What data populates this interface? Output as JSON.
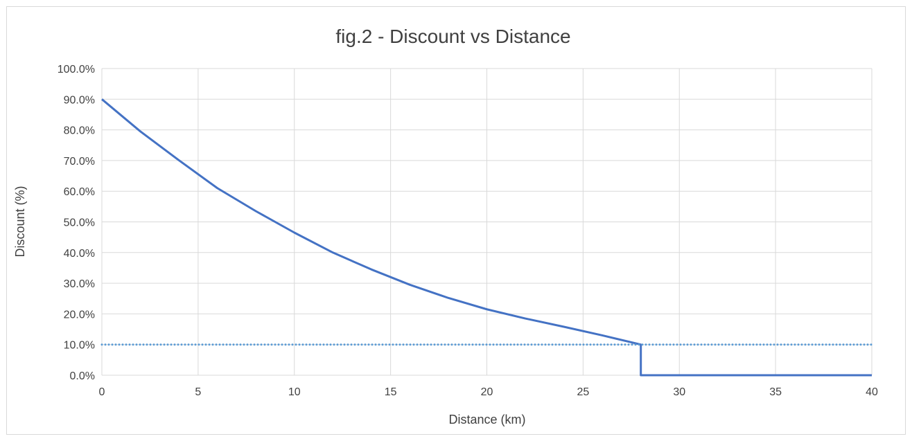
{
  "chart_data": {
    "type": "line",
    "title": "fig.2 - Discount vs Distance",
    "xlabel": "Distance (km)",
    "ylabel": "Discount (%)",
    "xlim": [
      0,
      40
    ],
    "ylim": [
      0,
      100
    ],
    "x_ticks": [
      0,
      5,
      10,
      15,
      20,
      25,
      30,
      35,
      40
    ],
    "x_tick_labels": [
      "0",
      "5",
      "10",
      "15",
      "20",
      "25",
      "30",
      "35",
      "40"
    ],
    "y_ticks": [
      0,
      10,
      20,
      30,
      40,
      50,
      60,
      70,
      80,
      90,
      100
    ],
    "y_tick_labels": [
      "0.0%",
      "10.0%",
      "20.0%",
      "30.0%",
      "40.0%",
      "50.0%",
      "60.0%",
      "70.0%",
      "80.0%",
      "90.0%",
      "100.0%"
    ],
    "grid": true,
    "series": [
      {
        "style": "solid",
        "color": "#4472c4",
        "x": [
          0,
          2,
          4,
          6,
          8,
          10,
          12,
          14,
          16,
          18,
          20,
          22,
          24,
          26,
          28,
          28,
          40
        ],
        "values": [
          90,
          79.5,
          70.1,
          61.0,
          53.5,
          46.5,
          40.0,
          34.5,
          29.5,
          25.2,
          21.5,
          18.5,
          15.8,
          13.0,
          10.0,
          0,
          0
        ]
      },
      {
        "style": "dotted",
        "color": "#5b9bd5",
        "x": [
          0,
          40
        ],
        "values": [
          10,
          10
        ]
      }
    ]
  }
}
